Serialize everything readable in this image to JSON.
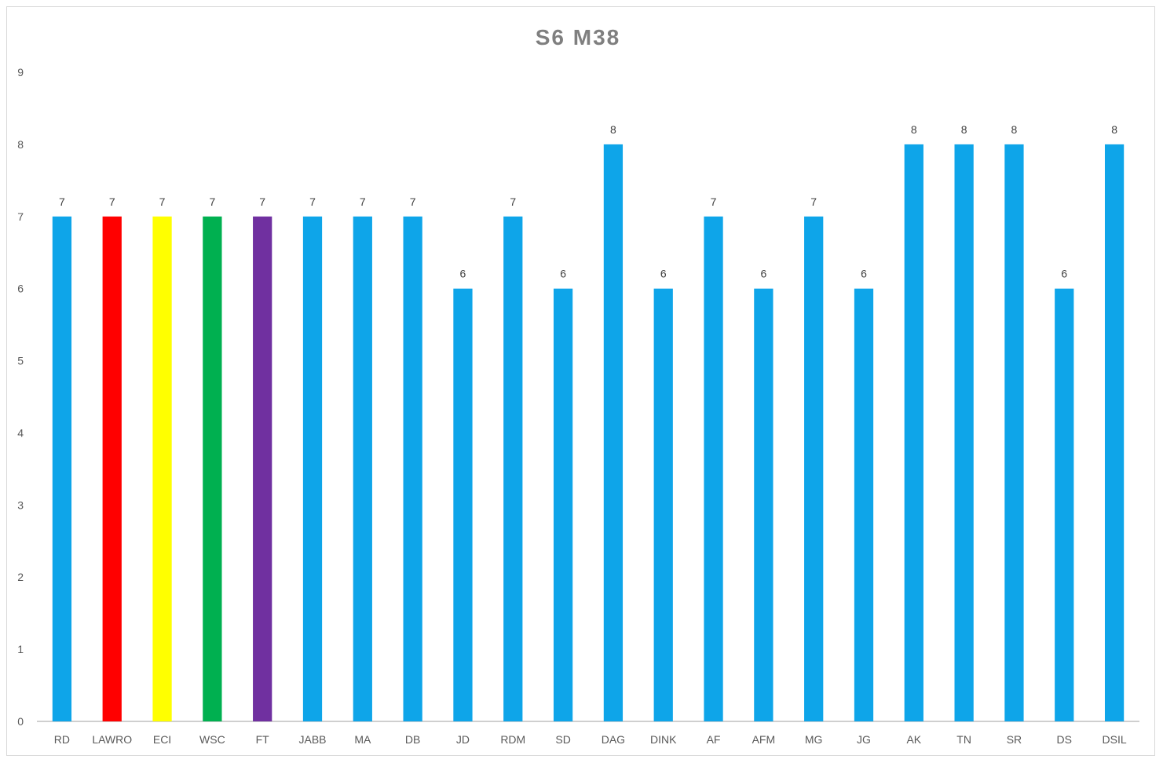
{
  "chart_data": {
    "type": "bar",
    "title": "S6 M38",
    "xlabel": "",
    "ylabel": "",
    "ylim": [
      0,
      9
    ],
    "yticks": [
      "0",
      "1",
      "2",
      "3",
      "4",
      "5",
      "6",
      "7",
      "8",
      "9"
    ],
    "grid": false,
    "legend": "none",
    "categories": [
      "RD",
      "LAWRO",
      "ECI",
      "WSC",
      "FT",
      "JABB",
      "MA",
      "DB",
      "JD",
      "RDM",
      "SD",
      "DAG",
      "DINK",
      "AF",
      "AFM",
      "MG",
      "JG",
      "AK",
      "TN",
      "SR",
      "DS",
      "DSIL"
    ],
    "values": [
      7,
      7,
      7,
      7,
      7,
      7,
      7,
      7,
      6,
      7,
      6,
      8,
      6,
      7,
      6,
      7,
      6,
      8,
      8,
      8,
      6,
      8
    ],
    "data_labels": [
      "7",
      "7",
      "7",
      "7",
      "7",
      "7",
      "7",
      "7",
      "6",
      "7",
      "6",
      "8",
      "6",
      "7",
      "6",
      "7",
      "6",
      "8",
      "8",
      "8",
      "6",
      "8"
    ],
    "colors": {
      "default": "#0ea5e9",
      "LAWRO": "#ff0000",
      "ECI": "#ffff00",
      "WSC": "#00b050",
      "FT": "#7030a0"
    }
  }
}
